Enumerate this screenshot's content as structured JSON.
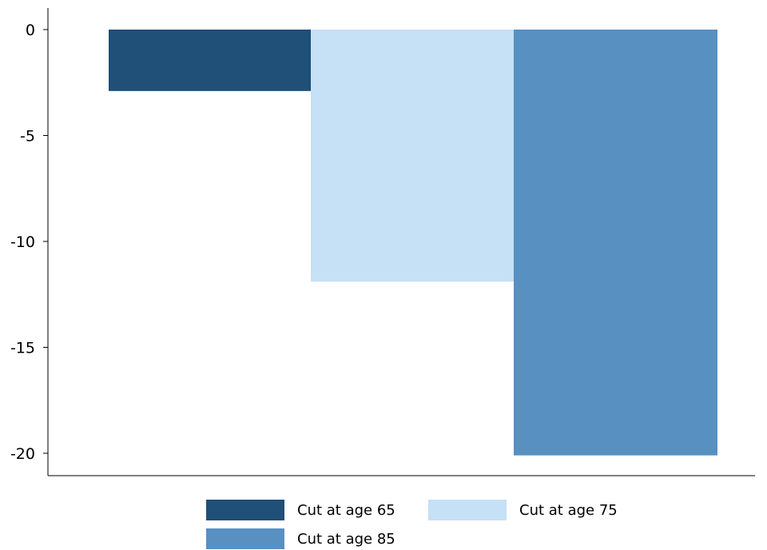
{
  "chart_data": {
    "type": "bar",
    "title": "",
    "xlabel": "",
    "ylabel": "",
    "ylim": [
      -21.1,
      1
    ],
    "yticks": [
      0,
      -5,
      -10,
      -15,
      -20
    ],
    "ytick_labels": [
      "0",
      "-5",
      "-10",
      "-15",
      "-20"
    ],
    "series": [
      {
        "name": "Cut at age 65",
        "value": -2.9,
        "color": "#204f78"
      },
      {
        "name": "Cut at age 75",
        "value": -11.9,
        "color": "#c6e0f6"
      },
      {
        "name": "Cut at age 85",
        "value": -20.1,
        "color": "#5990c2"
      }
    ],
    "legend_position": "bottom",
    "grid": false
  }
}
